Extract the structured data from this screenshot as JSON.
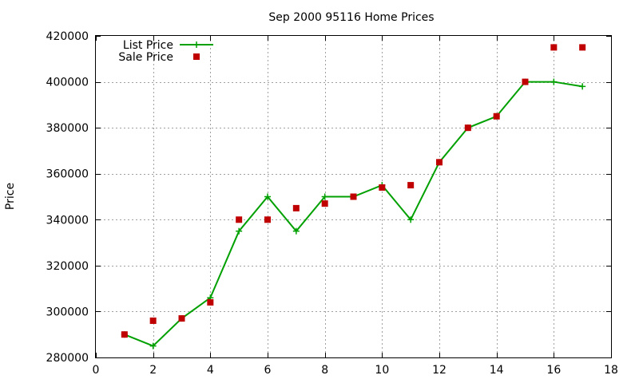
{
  "chart_data": {
    "type": "line",
    "title": "Sep 2000 95116 Home Prices",
    "xlabel": "",
    "ylabel": "Price",
    "xlim": [
      0,
      18
    ],
    "ylim": [
      280000,
      420000
    ],
    "x_ticks": [
      0,
      2,
      4,
      6,
      8,
      10,
      12,
      14,
      16,
      18
    ],
    "y_ticks": [
      280000,
      300000,
      320000,
      340000,
      360000,
      380000,
      400000,
      420000
    ],
    "grid": true,
    "legend_position": "top-left",
    "series": [
      {
        "name": "List Price",
        "style": "line-with-plus-markers",
        "color": "#00a000",
        "x": [
          1,
          2,
          3,
          4,
          5,
          6,
          7,
          8,
          9,
          10,
          11,
          12,
          13,
          14,
          15,
          16,
          17
        ],
        "values": [
          290000,
          285000,
          297000,
          306000,
          335000,
          350000,
          335000,
          350000,
          350000,
          355000,
          340000,
          365000,
          380000,
          385000,
          400000,
          400000,
          398000
        ]
      },
      {
        "name": "Sale Price",
        "style": "square-markers",
        "color": "#c00000",
        "x": [
          1,
          2,
          3,
          4,
          5,
          6,
          7,
          8,
          9,
          10,
          11,
          12,
          13,
          14,
          15,
          16,
          17
        ],
        "values": [
          290000,
          296000,
          297000,
          304000,
          340000,
          340000,
          345000,
          347000,
          350000,
          354000,
          355000,
          365000,
          380000,
          385000,
          400000,
          415000,
          415000
        ]
      }
    ]
  }
}
